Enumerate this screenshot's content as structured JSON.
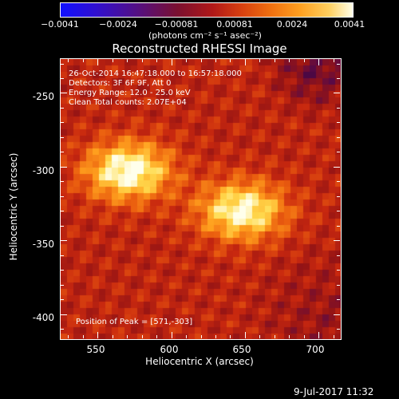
{
  "colorbar": {
    "ticks": [
      "−0.0041",
      "−0.0024",
      "−0.00081",
      "0.00081",
      "0.0024",
      "0.0041"
    ],
    "unit": "(photons cm⁻² s⁻¹ asec⁻²)"
  },
  "title": "Reconstructed RHESSI Image",
  "annotations": {
    "time": "26-Oct-2014 16:47:18.000 to 16:57:18.000",
    "detectors": "Detectors: 3F 6F 9F, Att 0",
    "energy": "Energy Range: 12.0 - 25.0 keV",
    "clean": "Clean     Total counts: 2.07E+04",
    "peak": "Position of Peak = [571,-303]"
  },
  "axes": {
    "xlabel": "Heliocentric X (arcsec)",
    "ylabel": "Heliocentric Y (arcsec)",
    "xticks": [
      "550",
      "600",
      "650",
      "700"
    ],
    "yticks": [
      "-250",
      "-300",
      "-350",
      "-400"
    ]
  },
  "footer": {
    "date": "9-Jul-2017 11:32"
  },
  "image": {
    "sources": [
      {
        "x": 571,
        "y": -303,
        "peak": 1.0
      },
      {
        "x": 648,
        "y": -330,
        "peak": 0.95
      }
    ]
  }
}
